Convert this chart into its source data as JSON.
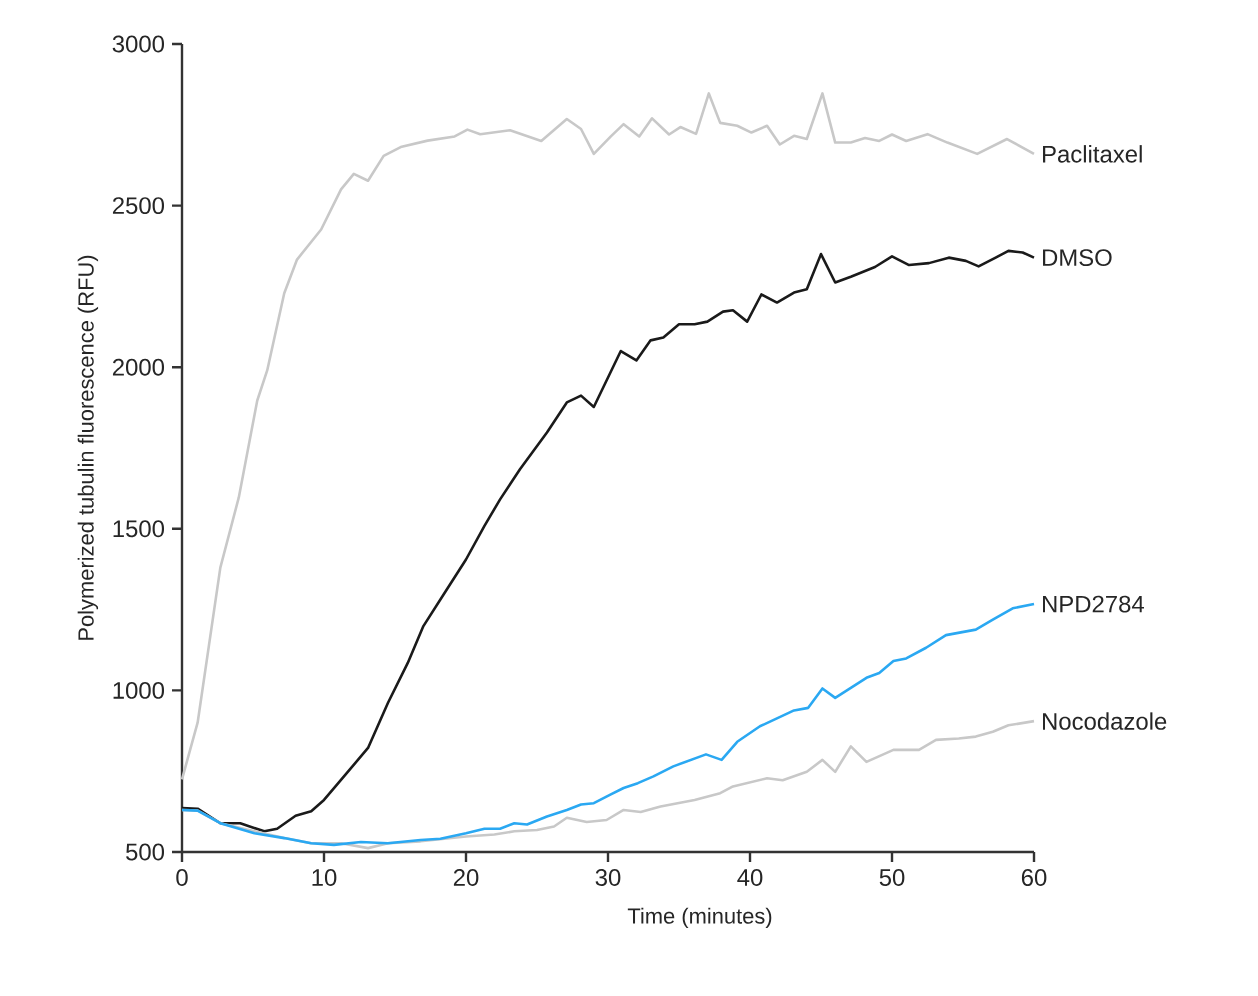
{
  "chart_data": {
    "type": "line",
    "xlabel": "Time (minutes)",
    "ylabel": "Polymerized tubulin fluorescence (RFU)",
    "xlim": [
      0,
      60
    ],
    "ylim": [
      500,
      3000
    ],
    "xticks": [
      0,
      10,
      20,
      30,
      40,
      50,
      60
    ],
    "yticks": [
      500,
      1000,
      1500,
      2000,
      2500,
      3000
    ],
    "grid": false,
    "legend": false,
    "series": [
      {
        "name": "Paclitaxel",
        "color": "#c8c8c8",
        "x": [
          0,
          1.1,
          2.7,
          4.0,
          5.3,
          6.0,
          7.2,
          8.1,
          9.8,
          11.2,
          12.1,
          13.1,
          14.2,
          15.4,
          17.3,
          19.2,
          20.1,
          21.0,
          23.1,
          25.3,
          27.1,
          28.1,
          29.0,
          30.2,
          31.1,
          32.2,
          33.1,
          34.3,
          35.1,
          36.2,
          37.1,
          37.9,
          39.1,
          40.1,
          41.2,
          42.1,
          43.1,
          44.0,
          45.1,
          46.0,
          47.1,
          48.1,
          49.1,
          50.0,
          51.0,
          52.5,
          53.9,
          56.0,
          58.1,
          60
        ],
        "values": [
          725,
          900,
          1380,
          1597,
          1897,
          1990,
          2229,
          2333,
          2426,
          2550,
          2598,
          2577,
          2654,
          2681,
          2701,
          2714,
          2735,
          2721,
          2733,
          2700,
          2768,
          2737,
          2660,
          2714,
          2752,
          2714,
          2770,
          2720,
          2743,
          2722,
          2847,
          2756,
          2747,
          2726,
          2747,
          2689,
          2716,
          2706,
          2847,
          2695,
          2695,
          2709,
          2700,
          2720,
          2700,
          2721,
          2695,
          2660,
          2706,
          2660
        ]
      },
      {
        "name": "DMSO",
        "color": "#1a1a1a",
        "x": [
          0,
          1.1,
          2.7,
          4.1,
          5.8,
          6.7,
          8.0,
          9.1,
          10.0,
          11.6,
          13.1,
          14.5,
          15.9,
          17.0,
          18.5,
          20.0,
          21.3,
          22.4,
          23.8,
          25.7,
          27.1,
          28.1,
          29.0,
          30.9,
          32.0,
          33.0,
          33.9,
          35.0,
          36.1,
          37.0,
          38.1,
          38.8,
          39.8,
          40.8,
          41.9,
          43.1,
          44.0,
          45.0,
          46.0,
          47.1,
          48.8,
          50.0,
          51.2,
          52.6,
          54.0,
          55.2,
          56.1,
          57.3,
          58.2,
          59.2,
          60
        ],
        "values": [
          636,
          634,
          589,
          589,
          564,
          572,
          612,
          626,
          661,
          744,
          822,
          961,
          1085,
          1199,
          1302,
          1405,
          1509,
          1591,
          1684,
          1798,
          1891,
          1912,
          1877,
          2050,
          2021,
          2083,
          2092,
          2133,
          2133,
          2141,
          2172,
          2176,
          2141,
          2225,
          2200,
          2231,
          2241,
          2350,
          2262,
          2280,
          2310,
          2343,
          2316,
          2322,
          2339,
          2329,
          2312,
          2339,
          2360,
          2355,
          2339
        ]
      },
      {
        "name": "Nocodazole",
        "color": "#c8c8c8",
        "x": [
          0,
          1.1,
          2.7,
          5.1,
          7.2,
          9.1,
          11.2,
          13.1,
          14.5,
          16.8,
          20.0,
          22.0,
          23.4,
          25.0,
          26.2,
          27.1,
          28.5,
          29.9,
          31.1,
          32.3,
          33.7,
          36.1,
          37.9,
          38.8,
          41.2,
          42.3,
          44.0,
          45.1,
          46.0,
          47.1,
          48.2,
          50.1,
          51.9,
          53.1,
          54.7,
          55.9,
          57.1,
          58.2,
          60
        ],
        "values": [
          630,
          628,
          589,
          564,
          543,
          527,
          527,
          512,
          527,
          533,
          548,
          554,
          564,
          568,
          579,
          606,
          593,
          599,
          630,
          624,
          641,
          661,
          682,
          703,
          728,
          722,
          748,
          785,
          748,
          827,
          779,
          816,
          816,
          847,
          851,
          857,
          872,
          892,
          905
        ]
      },
      {
        "name": "NPD2784",
        "color": "#2aa8f2",
        "x": [
          0,
          1.1,
          2.7,
          5.1,
          7.2,
          9.1,
          10.7,
          12.6,
          14.5,
          16.8,
          18.2,
          20.0,
          21.3,
          22.4,
          23.4,
          24.3,
          25.7,
          27.1,
          28.1,
          29.0,
          30.2,
          31.1,
          32.1,
          33.2,
          34.6,
          36.9,
          38.0,
          39.1,
          40.7,
          43.1,
          44.1,
          45.1,
          46.0,
          47.1,
          48.2,
          49.1,
          50.1,
          51.0,
          52.4,
          53.8,
          55.9,
          57.1,
          58.5,
          60
        ],
        "values": [
          630,
          628,
          589,
          558,
          543,
          527,
          522,
          531,
          527,
          537,
          541,
          558,
          572,
          572,
          589,
          585,
          610,
          630,
          647,
          651,
          678,
          698,
          713,
          734,
          765,
          802,
          785,
          841,
          889,
          938,
          946,
          1006,
          977,
          1008,
          1039,
          1054,
          1091,
          1099,
          1132,
          1171,
          1188,
          1219,
          1254,
          1267
        ]
      }
    ]
  }
}
